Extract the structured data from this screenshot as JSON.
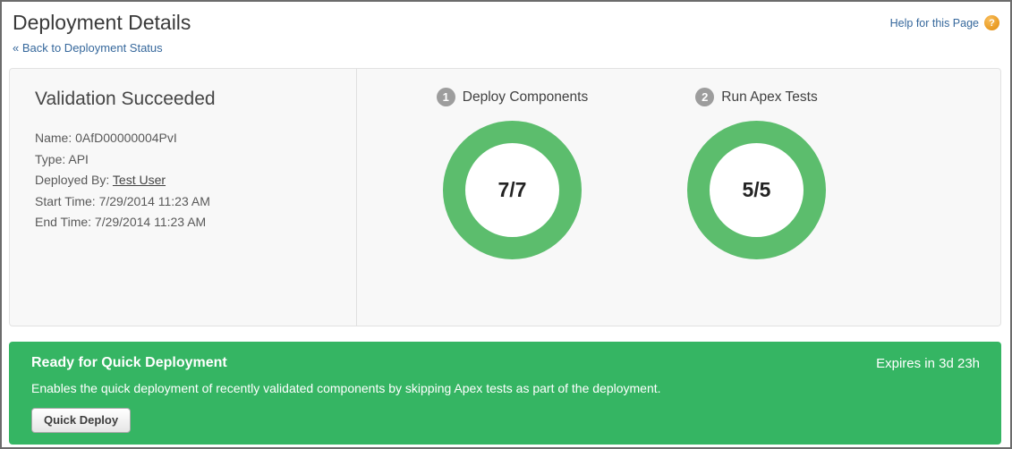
{
  "page": {
    "title": "Deployment Details",
    "back_link": "« Back to Deployment Status",
    "help_link": "Help for this Page",
    "help_icon_glyph": "?"
  },
  "summary": {
    "status_heading": "Validation Succeeded",
    "details": [
      {
        "label": "Name:",
        "value": "0AfD00000004PvI"
      },
      {
        "label": "Type:",
        "value": "API"
      },
      {
        "label": "Deployed By:",
        "value": "Test User"
      },
      {
        "label": "Start Time:",
        "value": "7/29/2014 11:23 AM"
      },
      {
        "label": "End Time:",
        "value": "7/29/2014 11:23 AM"
      }
    ]
  },
  "steps": [
    {
      "number": "1",
      "label": "Deploy Components",
      "progress": "7/7",
      "completed": 7,
      "total": 7
    },
    {
      "number": "2",
      "label": "Run Apex Tests",
      "progress": "5/5",
      "completed": 5,
      "total": 5
    }
  ],
  "banner": {
    "heading": "Ready for Quick Deployment",
    "expires": "Expires in 3d 23h",
    "description": "Enables the quick deployment of recently validated components by skipping Apex tests as part of the deployment.",
    "button_label": "Quick Deploy"
  },
  "colors": {
    "ring_green": "#5cbd6d",
    "banner_green": "#35b563",
    "link_blue": "#36689c",
    "step_circle_gray": "#9d9d9d",
    "help_icon_orange": "#e89a22"
  }
}
